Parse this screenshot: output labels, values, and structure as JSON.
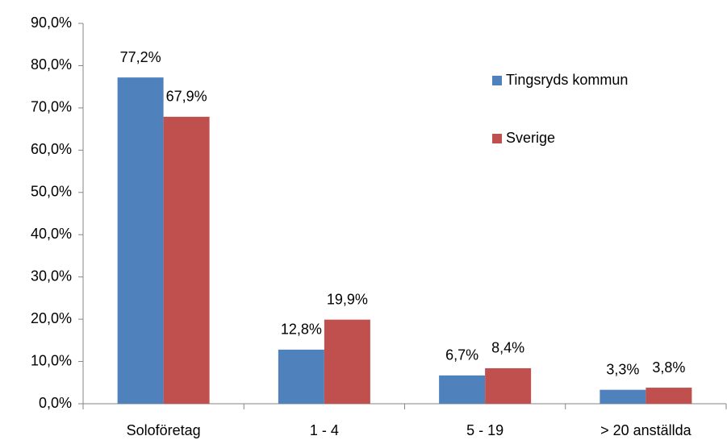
{
  "chart_data": {
    "type": "bar",
    "categories": [
      "Soloföretag",
      "1 - 4",
      "5 - 19",
      "> 20 anställda"
    ],
    "series": [
      {
        "name": "Tingsryds kommun",
        "color": "#4f81bd",
        "values": [
          77.2,
          12.8,
          6.7,
          3.3
        ],
        "value_labels": [
          "77,2%",
          "12,8%",
          "6,7%",
          "3,3%"
        ]
      },
      {
        "name": "Sverige",
        "color": "#c0504d",
        "values": [
          67.9,
          19.9,
          8.4,
          3.8
        ],
        "value_labels": [
          "67,9%",
          "19,9%",
          "8,4%",
          "3,8%"
        ]
      }
    ],
    "ylim": [
      0,
      90
    ],
    "yticks": [
      {
        "value": 0,
        "label": "0,0%"
      },
      {
        "value": 10,
        "label": "10,0%"
      },
      {
        "value": 20,
        "label": "20,0%"
      },
      {
        "value": 30,
        "label": "30,0%"
      },
      {
        "value": 40,
        "label": "40,0%"
      },
      {
        "value": 50,
        "label": "50,0%"
      },
      {
        "value": 60,
        "label": "60,0%"
      },
      {
        "value": 70,
        "label": "70,0%"
      },
      {
        "value": 80,
        "label": "80,0%"
      },
      {
        "value": 90,
        "label": "90,0%"
      }
    ],
    "grid": false,
    "legend": "right"
  }
}
